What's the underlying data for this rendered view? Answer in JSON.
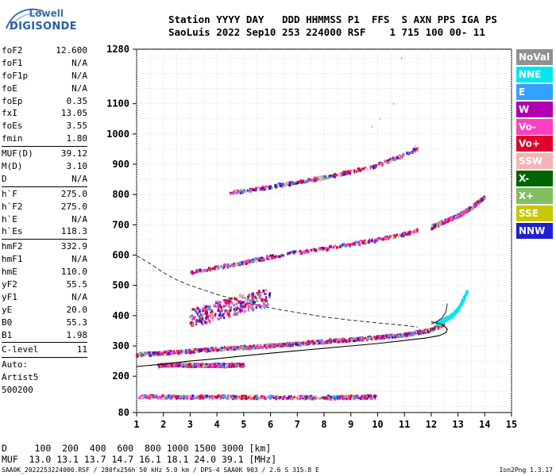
{
  "logo": {
    "line1": "Lowell",
    "line2": "DIGISONDE"
  },
  "header": {
    "line1": "Station YYYY DAY   DDD HHMMSS P1  FFS  S AXN PPS IGA PS",
    "line2": "SaoLuis 2022 Sep10 253 224000 RSF    1 715 100 00- 11"
  },
  "params": [
    {
      "name": "foF2",
      "value": "12.600"
    },
    {
      "name": "foF1",
      "value": "N/A"
    },
    {
      "name": "foF1p",
      "value": "N/A"
    },
    {
      "name": "foE",
      "value": "N/A"
    },
    {
      "name": "foEp",
      "value": "0.35"
    },
    {
      "name": "fxI",
      "value": "13.05"
    },
    {
      "name": "foEs",
      "value": "3.55"
    },
    {
      "name": "fmin",
      "value": "1.80"
    },
    {
      "sep": true
    },
    {
      "name": "MUF(D)",
      "value": "39.12"
    },
    {
      "name": "M(D)",
      "value": "3.10"
    },
    {
      "name": "D",
      "value": "N/A"
    },
    {
      "sep": true
    },
    {
      "name": "h`F",
      "value": "275.0"
    },
    {
      "name": "h`F2",
      "value": "275.0"
    },
    {
      "name": "h`E",
      "value": "N/A"
    },
    {
      "name": "h`Es",
      "value": "118.3"
    },
    {
      "sep": true
    },
    {
      "name": "hmF2",
      "value": "332.9"
    },
    {
      "name": "hmF1",
      "value": "N/A"
    },
    {
      "name": "hmE",
      "value": "110.0"
    },
    {
      "name": "yF2",
      "value": "55.5"
    },
    {
      "name": "yF1",
      "value": "N/A"
    },
    {
      "name": "yE",
      "value": "20.0"
    },
    {
      "name": "B0",
      "value": "55.3"
    },
    {
      "name": "B1",
      "value": "1.98"
    },
    {
      "sep": true
    },
    {
      "name": "C-level",
      "value": "11"
    },
    {
      "sep": true
    },
    {
      "text": "Auto:"
    },
    {
      "text": "Artist5"
    },
    {
      "text": "500200"
    }
  ],
  "legend": [
    {
      "label": "NoVal",
      "color": "#909090"
    },
    {
      "label": "NNE",
      "color": "#00e5ee"
    },
    {
      "label": "E",
      "color": "#33a1ff"
    },
    {
      "label": "W",
      "color": "#b000b0"
    },
    {
      "label": "Vo-",
      "color": "#ff3fbf"
    },
    {
      "label": "Vo+",
      "color": "#e0002a"
    },
    {
      "label": "SSW",
      "color": "#f4b4b4"
    },
    {
      "label": "X-",
      "color": "#006400"
    },
    {
      "label": "X+",
      "color": "#7fbf5f"
    },
    {
      "label": "SSE",
      "color": "#c8c800"
    },
    {
      "label": "NNW",
      "color": "#2020d0"
    }
  ],
  "footer": {
    "d_line": "D     100  200  400  600  800 1000 1500 3000 [km]",
    "muf_line": "MUF  13.0 13.1 13.7 14.7 16.1 18.1 24.0 39.1 [MHz]",
    "source": "SAA0K_2022253224000.RSF / 280fx256h 50 kHz 5.0 km / DPS-4 SAA0K 903 / 2.6 S 315.8 E",
    "version": "Ion2Png 1.3.17"
  },
  "chart_data": {
    "type": "scatter",
    "xlim": [
      1,
      15
    ],
    "ylim": [
      80,
      1280
    ],
    "x_ticks": [
      1,
      2,
      3,
      4,
      5,
      6,
      7,
      8,
      9,
      10,
      11,
      12,
      13,
      14,
      15
    ],
    "y_ticks": [
      80,
      200,
      300,
      400,
      500,
      600,
      700,
      800,
      900,
      1000,
      1100,
      1280
    ],
    "grid": true,
    "profile": {
      "x": [
        1.0,
        2.0,
        3.0,
        4.0,
        5.0,
        6.0,
        7.0,
        8.0,
        9.0,
        10.0,
        11.0,
        11.8,
        12.3,
        12.55,
        12.6,
        12.4,
        12.0
      ],
      "y": [
        232,
        240,
        250,
        258,
        267,
        276,
        284,
        292,
        300,
        308,
        318,
        326,
        334,
        344,
        356,
        372,
        380
      ]
    },
    "trace": {
      "x": [
        12.0,
        12.2,
        12.4,
        12.55,
        12.6
      ],
      "y": [
        372,
        380,
        392,
        412,
        440
      ]
    },
    "dashed_profile": {
      "x": [
        1.0,
        1.5,
        2.0,
        2.5,
        3.0,
        4.0,
        5.0,
        6.0,
        7.0,
        8.0,
        9.0,
        10.0,
        11.0,
        11.5
      ],
      "y": [
        598,
        572,
        542,
        518,
        500,
        470,
        445,
        425,
        410,
        396,
        385,
        376,
        368,
        362
      ]
    },
    "bands": [
      {
        "name": "F2",
        "color_cycle": true,
        "x": [
          1.0,
          2.0,
          3.0,
          4.0,
          5.0,
          6.0,
          7.0,
          8.0,
          9.0,
          10.0,
          11.0,
          12.0,
          12.5
        ],
        "y": [
          270,
          276,
          282,
          289,
          294,
          300,
          306,
          314,
          320,
          328,
          336,
          352,
          372
        ]
      },
      {
        "name": "2F",
        "color_cycle": true,
        "x": [
          3.0,
          4.0,
          5.0,
          6.0,
          7.0,
          8.0,
          9.0,
          10.0,
          11.0,
          11.5
        ],
        "y": [
          540,
          558,
          575,
          593,
          608,
          620,
          635,
          650,
          668,
          680
        ]
      },
      {
        "name": "2F-high",
        "color_cycle": true,
        "x": [
          12.0,
          12.5,
          13.0,
          13.5,
          14.0
        ],
        "y": [
          690,
          710,
          730,
          755,
          790
        ]
      },
      {
        "name": "3F",
        "color_cycle": true,
        "x": [
          4.5,
          6.0,
          8.0,
          10.0,
          11.5
        ],
        "y": [
          805,
          825,
          855,
          895,
          950
        ]
      },
      {
        "name": "NNE-tail",
        "color_cycle": false,
        "x": [
          12.2,
          12.5,
          12.8,
          13.0,
          13.2,
          13.35
        ],
        "y": [
          372,
          385,
          400,
          420,
          450,
          480
        ]
      },
      {
        "name": "Es",
        "color_cycle": true,
        "x": [
          1.1,
          2.0,
          3.0,
          4.0,
          5.0,
          6.0,
          7.0,
          8.0,
          9.0,
          10.0
        ],
        "y": [
          133,
          131,
          130,
          131,
          130,
          130,
          130,
          129,
          130,
          131
        ]
      },
      {
        "name": "Es2",
        "color_cycle": true,
        "x": [
          1.8,
          2.5,
          3.0,
          3.5,
          4.0,
          4.5,
          5.0
        ],
        "y": [
          235,
          237,
          236,
          235,
          236,
          235,
          236
        ]
      },
      {
        "name": "spread",
        "color_cycle": true,
        "x": [
          3.0,
          3.5,
          4.0,
          4.5,
          5.0,
          5.5,
          6.0
        ],
        "y": [
          390,
          402,
          416,
          428,
          440,
          450,
          458
        ]
      }
    ]
  }
}
